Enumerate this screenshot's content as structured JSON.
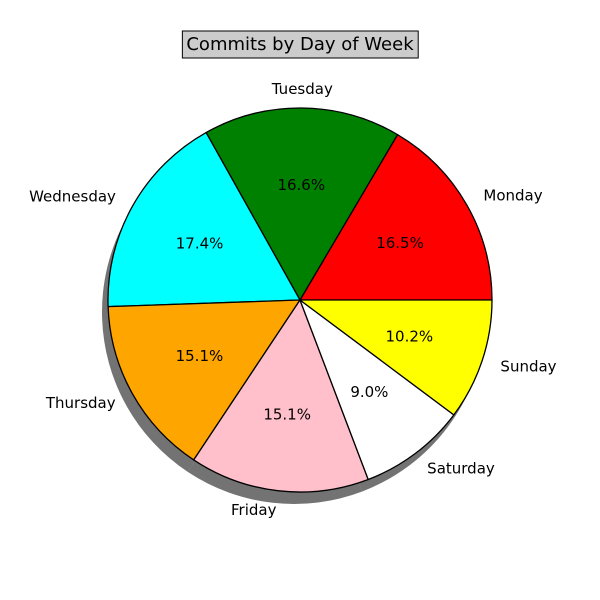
{
  "chart_data": {
    "type": "pie",
    "title": "Commits by Day of Week",
    "categories": [
      "Monday",
      "Tuesday",
      "Wednesday",
      "Thursday",
      "Friday",
      "Saturday",
      "Sunday"
    ],
    "values": [
      16.5,
      16.6,
      17.4,
      15.1,
      15.1,
      9.0,
      10.2
    ],
    "percent_labels": [
      "16.5%",
      "16.6%",
      "17.4%",
      "15.1%",
      "15.1%",
      "9.0%",
      "10.2%"
    ],
    "colors": [
      "#ff0000",
      "#008000",
      "#00ffff",
      "#ffa500",
      "#ffc0cb",
      "#ffffff",
      "#ffff00"
    ],
    "start_angle_deg": 0,
    "direction": "counterclockwise",
    "shadow": true,
    "title_box_color": "#cccccc"
  }
}
